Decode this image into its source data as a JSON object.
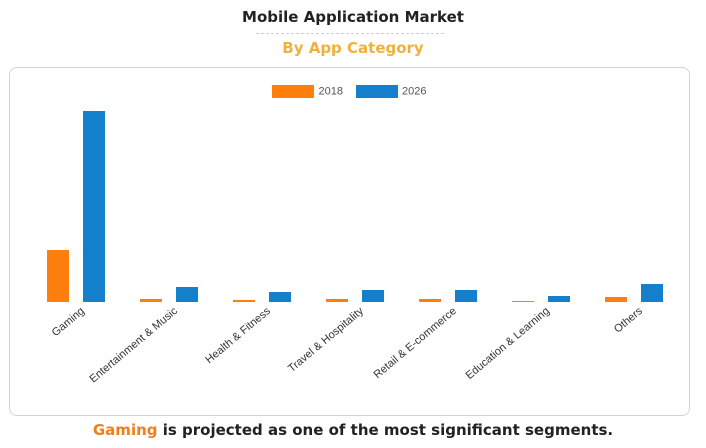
{
  "header": {
    "title": "Mobile Application Market",
    "subtitle": "By App Category"
  },
  "colors": {
    "accent": "#f0b13a",
    "highlight": "#f07f1a"
  },
  "footer": {
    "highlight": "Gaming",
    "rest": " is projected as one of the most significant segments."
  },
  "chart_data": {
    "type": "bar",
    "categories": [
      "Gaming",
      "Entertainment & Music",
      "Health & Fitness",
      "Travel & Hospitality",
      "Retail & E-commerce",
      "Education & Learning",
      "Others"
    ],
    "series": [
      {
        "name": "2018",
        "color": "#ff7f0e",
        "values": [
          52,
          3,
          2,
          3,
          3,
          1,
          5
        ]
      },
      {
        "name": "2026",
        "color": "#1480cc",
        "values": [
          191,
          15,
          10,
          12,
          12,
          6,
          18
        ]
      }
    ],
    "ylim": [
      0,
      200
    ],
    "grid": false,
    "legend": "top-center"
  }
}
